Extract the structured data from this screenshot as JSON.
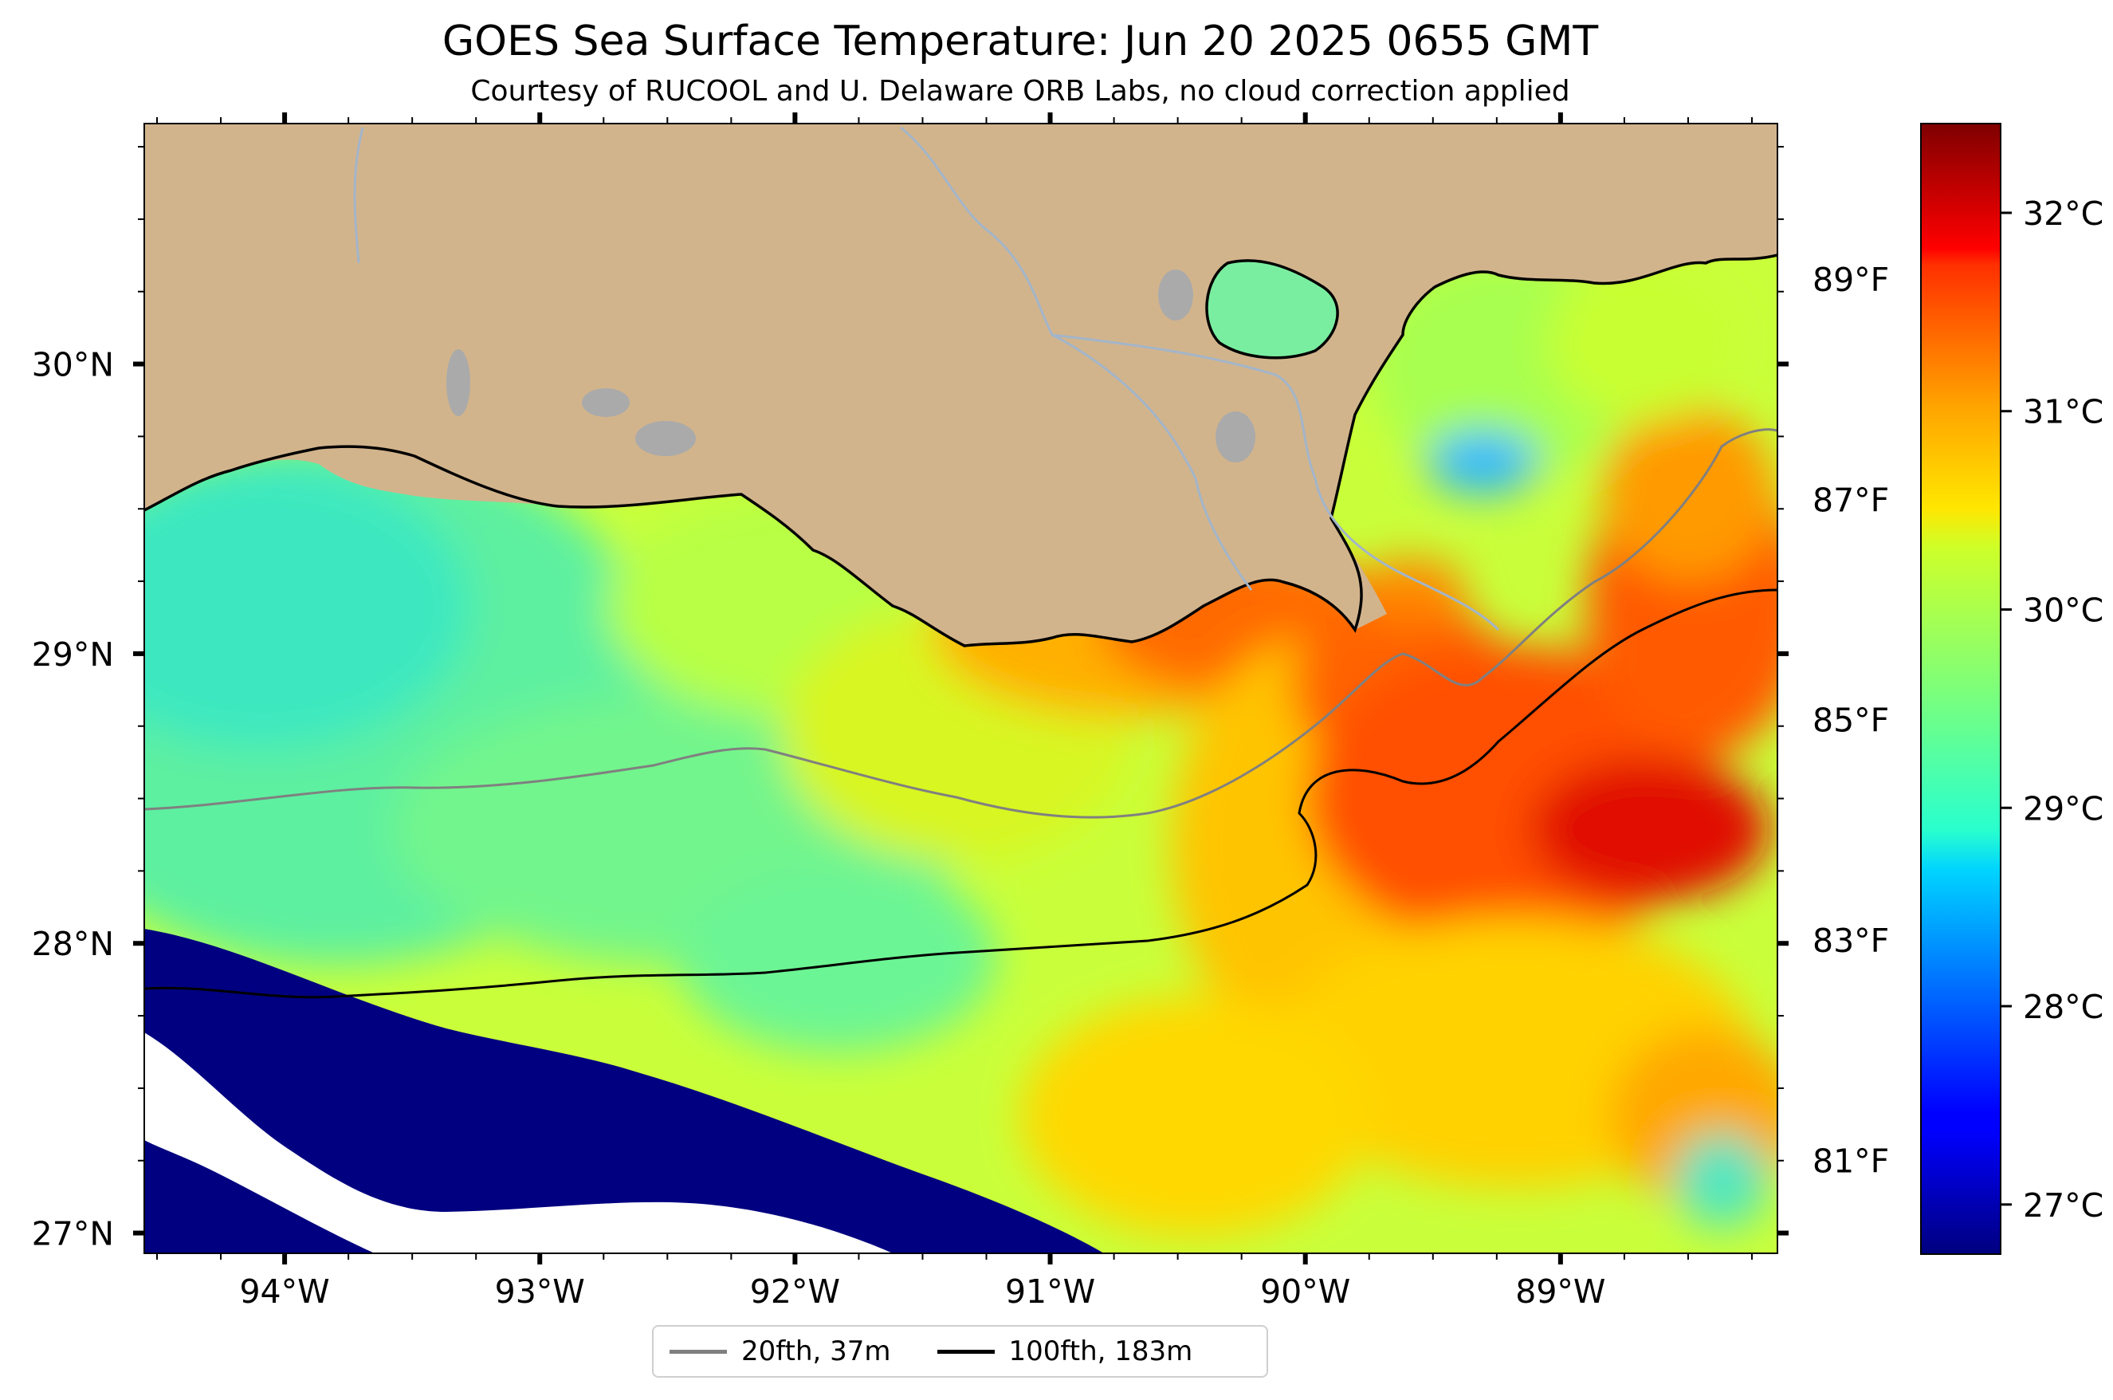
{
  "title": "GOES Sea Surface Temperature: Jun 20 2025 0655 GMT",
  "subtitle": "Courtesy of RUCOOL and U. Delaware ORB Labs, no cloud correction applied",
  "map": {
    "lon_range": [
      -94.55,
      -88.15
    ],
    "lat_range": [
      26.93,
      30.83
    ],
    "colors": {
      "land": "#d2b48c",
      "coastline": "#000000",
      "rivers": "#a3b5c9",
      "lakes": "#aaaaaa",
      "no_data": "#ffffff"
    },
    "lon_ticks": [
      {
        "value": -94,
        "label": "94°W"
      },
      {
        "value": -93,
        "label": "93°W"
      },
      {
        "value": -92,
        "label": "92°W"
      },
      {
        "value": -91,
        "label": "91°W"
      },
      {
        "value": -90,
        "label": "90°W"
      },
      {
        "value": -89,
        "label": "89°W"
      }
    ],
    "lat_ticks": [
      {
        "value": 27,
        "label": "27°N"
      },
      {
        "value": 28,
        "label": "28°N"
      },
      {
        "value": 29,
        "label": "29°N"
      },
      {
        "value": 30,
        "label": "30°N"
      }
    ],
    "fahrenheit_ticks": [
      {
        "value": 81,
        "label": "81°F"
      },
      {
        "value": 83,
        "label": "83°F"
      },
      {
        "value": 85,
        "label": "85°F"
      },
      {
        "value": 87,
        "label": "87°F"
      },
      {
        "value": 89,
        "label": "89°F"
      }
    ]
  },
  "colorbar": {
    "min_c": 26.75,
    "max_c": 32.45,
    "colormap": "jet",
    "ticks": [
      {
        "value": 27,
        "label": "27°C"
      },
      {
        "value": 28,
        "label": "28°C"
      },
      {
        "value": 29,
        "label": "29°C"
      },
      {
        "value": 30,
        "label": "30°C"
      },
      {
        "value": 31,
        "label": "31°C"
      },
      {
        "value": 32,
        "label": "32°C"
      }
    ]
  },
  "legend": {
    "items": [
      {
        "label": "20fth, 37m",
        "color": "#808080"
      },
      {
        "label": "100fth, 183m",
        "color": "#000000"
      }
    ]
  }
}
